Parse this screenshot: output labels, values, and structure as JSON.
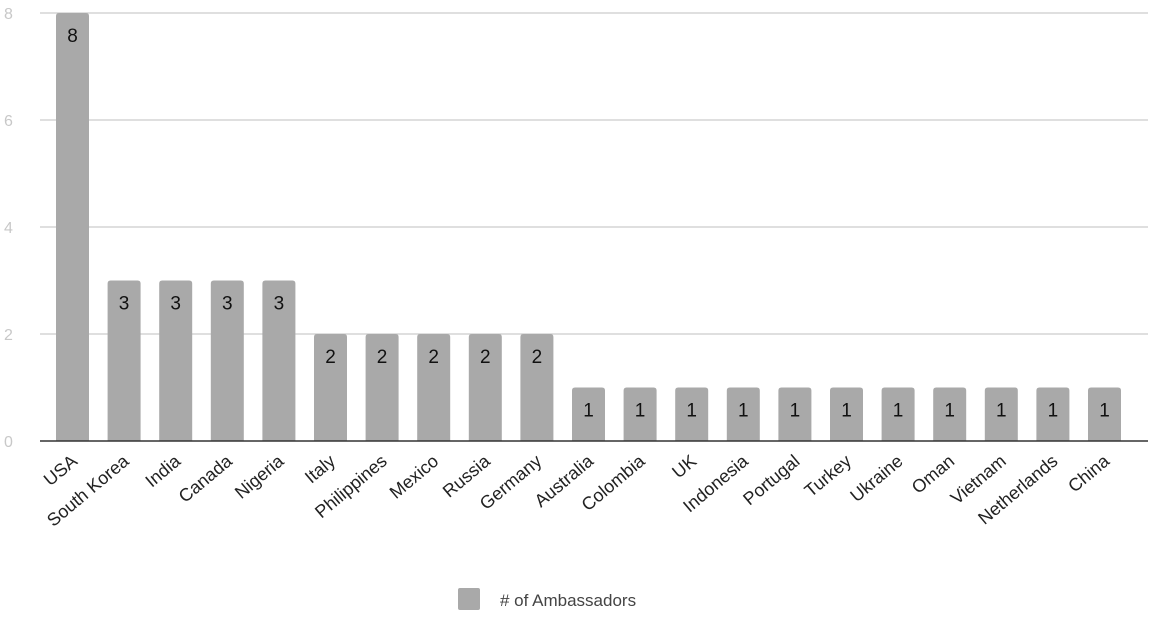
{
  "chart_data": {
    "type": "bar",
    "categories": [
      "USA",
      "South Korea",
      "India",
      "Canada",
      "Nigeria",
      "Italy",
      "Philippines",
      "Mexico",
      "Russia",
      "Germany",
      "Australia",
      "Colombia",
      "UK",
      "Indonesia",
      "Portugal",
      "Turkey",
      "Ukraine",
      "Oman",
      "Vietnam",
      "Netherlands",
      "China"
    ],
    "series": [
      {
        "name": "# of Ambassadors",
        "values": [
          8,
          3,
          3,
          3,
          3,
          2,
          2,
          2,
          2,
          2,
          1,
          1,
          1,
          1,
          1,
          1,
          1,
          1,
          1,
          1,
          1
        ]
      }
    ],
    "title": "",
    "xlabel": "",
    "ylabel": "",
    "ylim": [
      0,
      8
    ],
    "yticks": [
      0,
      2,
      4,
      6,
      8
    ],
    "grid": true,
    "legend": "bottom",
    "data_labels": true,
    "bar_color": "#a9a9a9",
    "gridline_color": "#cccccc",
    "axis_line_color": "#333333",
    "tick_label_color": "#c8c8c8",
    "category_label_color": "#222222",
    "data_label_color": "#111111"
  }
}
